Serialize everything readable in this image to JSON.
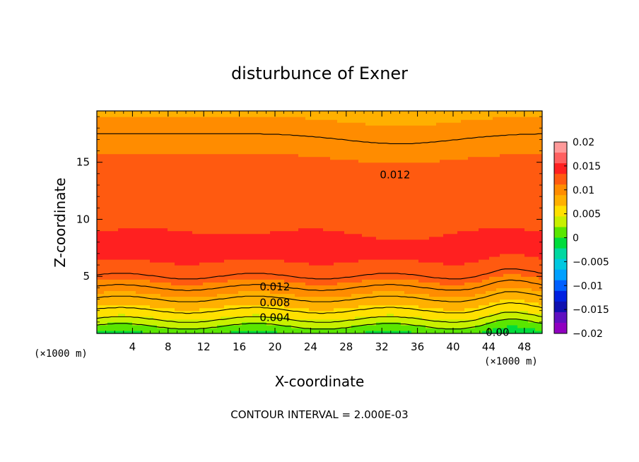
{
  "chart_data": {
    "type": "contour",
    "title": "disturbunce of Exner",
    "xlabel": "X-coordinate",
    "ylabel": "Z-coordinate",
    "x_unit": "(×1000 m)",
    "z_unit": "(×1000 m)",
    "xlim": [
      0,
      50
    ],
    "ylim": [
      0,
      19.5
    ],
    "x_ticks": [
      4,
      8,
      12,
      16,
      20,
      24,
      28,
      32,
      36,
      40,
      44,
      48
    ],
    "y_ticks": [
      5,
      10,
      15
    ],
    "contour_interval_text": "CONTOUR INTERVAL = 2.000E-03",
    "colorbar": {
      "labels": [
        "0.02",
        "0.015",
        "0.01",
        "0.005",
        "0",
        "−0.005",
        "−0.01",
        "−0.015",
        "−0.02"
      ],
      "levels": [
        0.02,
        0.015,
        0.01,
        0.005,
        0,
        -0.005,
        -0.01,
        -0.015,
        -0.02
      ],
      "colors": [
        "#ff9a9a",
        "#ff6060",
        "#ff2020",
        "#ff5a10",
        "#ff8c00",
        "#ffb000",
        "#ffe000",
        "#c8f000",
        "#5ae600",
        "#00dc3c",
        "#00d8a0",
        "#00c8e0",
        "#00a0ff",
        "#0060ff",
        "#0020e0",
        "#1010b0",
        "#6010c0",
        "#9000c0"
      ]
    },
    "field_profile": {
      "z": [
        0.0,
        0.6,
        1.2,
        2.0,
        3.0,
        4.0,
        5.0,
        6.5,
        8.0,
        9.6,
        11.0,
        12.5,
        14.3,
        16.0,
        17.5,
        19.0,
        19.5
      ],
      "value": [
        0.0,
        0.002,
        0.004,
        0.006,
        0.008,
        0.01,
        0.012,
        0.0135,
        0.0138,
        0.013,
        0.0125,
        0.012,
        0.012,
        0.011,
        0.01,
        0.009,
        0.0085
      ]
    },
    "contour_labels": [
      {
        "text": "0.012",
        "x": 31.5,
        "z": 13.9
      },
      {
        "text": "0.012",
        "x": 18.0,
        "z": 4.1
      },
      {
        "text": "0.008",
        "x": 18.0,
        "z": 2.7
      },
      {
        "text": "0.004",
        "x": 18.0,
        "z": 1.4
      },
      {
        "text": "0.00",
        "x": 43.0,
        "z": 0.1
      }
    ]
  }
}
